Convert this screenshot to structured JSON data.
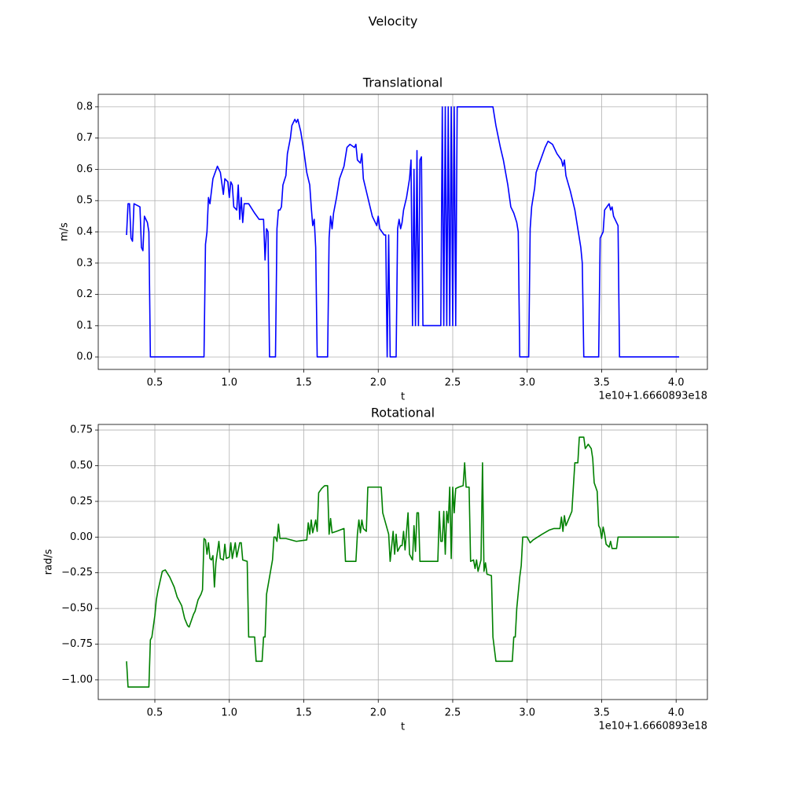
{
  "title": "Velocity",
  "chart_data": [
    {
      "type": "line",
      "title": "Translational",
      "x_label": "t",
      "y_label": "m/s",
      "x_offset_label": "1e10+1.6660893e18",
      "grid": true,
      "xlim": [
        0.12,
        4.21
      ],
      "ylim": [
        -0.04,
        0.84
      ],
      "xticks": [
        0.5,
        {
          "value": 1,
          "label": "1.0"
        },
        1.5,
        {
          "value": 2,
          "label": "2.0"
        },
        2.5,
        {
          "value": 3,
          "label": "3.0"
        },
        3.5,
        {
          "value": 4,
          "label": "4.0"
        }
      ],
      "yticks": [
        {
          "value": 0,
          "label": "0.0"
        },
        0.1,
        0.2,
        0.3,
        0.4,
        0.5,
        0.6,
        0.7,
        0.8
      ],
      "x": [
        0.31,
        0.32,
        0.33,
        0.34,
        0.35,
        0.36,
        0.4,
        0.41,
        0.42,
        0.43,
        0.45,
        0.46,
        0.47,
        0.83,
        0.84,
        0.85,
        0.86,
        0.87,
        0.89,
        0.92,
        0.94,
        0.96,
        0.97,
        0.99,
        1.0,
        1.01,
        1.02,
        1.03,
        1.05,
        1.06,
        1.07,
        1.08,
        1.09,
        1.1,
        1.13,
        1.17,
        1.2,
        1.23,
        1.24,
        1.25,
        1.26,
        1.27,
        1.31,
        1.32,
        1.33,
        1.34,
        1.35,
        1.36,
        1.38,
        1.39,
        1.41,
        1.42,
        1.44,
        1.45,
        1.46,
        1.48,
        1.5,
        1.52,
        1.54,
        1.55,
        1.56,
        1.57,
        1.58,
        1.59,
        1.66,
        1.67,
        1.68,
        1.69,
        1.7,
        1.72,
        1.74,
        1.77,
        1.79,
        1.81,
        1.84,
        1.85,
        1.86,
        1.88,
        1.89,
        1.9,
        1.93,
        1.96,
        1.98,
        1.99,
        2.0,
        2.01,
        2.04,
        2.05,
        2.06,
        2.07,
        2.08,
        2.12,
        2.13,
        2.14,
        2.15,
        2.16,
        2.17,
        2.19,
        2.21,
        2.22,
        2.23,
        2.24,
        2.25,
        2.26,
        2.27,
        2.28,
        2.29,
        2.3,
        2.42,
        2.43,
        2.44,
        2.45,
        2.46,
        2.47,
        2.48,
        2.49,
        2.5,
        2.51,
        2.52,
        2.53,
        2.77,
        2.79,
        2.82,
        2.84,
        2.87,
        2.89,
        2.91,
        2.93,
        2.94,
        2.95,
        3.01,
        3.02,
        3.03,
        3.05,
        3.06,
        3.09,
        3.12,
        3.14,
        3.17,
        3.2,
        3.23,
        3.24,
        3.25,
        3.26,
        3.29,
        3.32,
        3.34,
        3.36,
        3.37,
        3.38,
        3.48,
        3.49,
        3.51,
        3.52,
        3.55,
        3.56,
        3.57,
        3.58,
        3.61,
        3.62,
        4.02
      ],
      "series": [
        {
          "name": "Translational",
          "color": "#0000ff",
          "values": [
            0.39,
            0.49,
            0.49,
            0.38,
            0.37,
            0.49,
            0.48,
            0.35,
            0.34,
            0.45,
            0.43,
            0.4,
            0.0,
            0.0,
            0.36,
            0.4,
            0.51,
            0.49,
            0.57,
            0.61,
            0.59,
            0.52,
            0.57,
            0.56,
            0.51,
            0.56,
            0.55,
            0.48,
            0.47,
            0.55,
            0.44,
            0.51,
            0.43,
            0.49,
            0.49,
            0.46,
            0.44,
            0.44,
            0.31,
            0.41,
            0.4,
            0.0,
            0.0,
            0.41,
            0.47,
            0.47,
            0.48,
            0.55,
            0.58,
            0.65,
            0.7,
            0.74,
            0.76,
            0.75,
            0.76,
            0.72,
            0.66,
            0.59,
            0.55,
            0.48,
            0.42,
            0.44,
            0.35,
            0.0,
            0.0,
            0.38,
            0.45,
            0.41,
            0.46,
            0.51,
            0.57,
            0.61,
            0.67,
            0.68,
            0.67,
            0.68,
            0.63,
            0.62,
            0.65,
            0.57,
            0.51,
            0.45,
            0.43,
            0.42,
            0.45,
            0.41,
            0.39,
            0.39,
            0.0,
            0.39,
            0.0,
            0.0,
            0.41,
            0.44,
            0.41,
            0.43,
            0.47,
            0.51,
            0.57,
            0.63,
            0.1,
            0.6,
            0.1,
            0.66,
            0.1,
            0.63,
            0.64,
            0.1,
            0.1,
            0.8,
            0.1,
            0.8,
            0.1,
            0.8,
            0.1,
            0.8,
            0.1,
            0.8,
            0.1,
            0.8,
            0.8,
            0.74,
            0.67,
            0.63,
            0.55,
            0.48,
            0.46,
            0.43,
            0.4,
            0.0,
            0.0,
            0.41,
            0.48,
            0.54,
            0.59,
            0.63,
            0.67,
            0.69,
            0.68,
            0.65,
            0.63,
            0.61,
            0.63,
            0.58,
            0.53,
            0.47,
            0.41,
            0.35,
            0.3,
            0.0,
            0.0,
            0.38,
            0.4,
            0.47,
            0.49,
            0.47,
            0.48,
            0.45,
            0.42,
            0.0,
            0.0
          ]
        }
      ]
    },
    {
      "type": "line",
      "title": "Rotational",
      "x_label": "t",
      "y_label": "rad/s",
      "x_offset_label": "1e10+1.6660893e18",
      "grid": true,
      "xlim": [
        0.12,
        4.21
      ],
      "ylim": [
        -1.138,
        0.789
      ],
      "xticks": [
        0.5,
        {
          "value": 1,
          "label": "1.0"
        },
        1.5,
        {
          "value": 2,
          "label": "2.0"
        },
        2.5,
        {
          "value": 3,
          "label": "3.0"
        },
        3.5,
        {
          "value": 4,
          "label": "4.0"
        }
      ],
      "yticks": [
        {
          "value": -1,
          "label": "−1.00"
        },
        {
          "value": -0.75,
          "label": "−0.75"
        },
        {
          "value": -0.5,
          "label": "−0.50"
        },
        {
          "value": -0.25,
          "label": "−0.25"
        },
        {
          "value": 0,
          "label": "0.00"
        },
        0.25,
        {
          "value": 0.5,
          "label": "0.50"
        },
        0.75
      ],
      "x": [
        0.31,
        0.32,
        0.46,
        0.47,
        0.48,
        0.5,
        0.51,
        0.52,
        0.55,
        0.57,
        0.6,
        0.63,
        0.65,
        0.68,
        0.7,
        0.72,
        0.73,
        0.76,
        0.77,
        0.79,
        0.81,
        0.82,
        0.83,
        0.84,
        0.85,
        0.86,
        0.87,
        0.88,
        0.89,
        0.9,
        0.91,
        0.93,
        0.94,
        0.96,
        0.97,
        0.98,
        1.0,
        1.01,
        1.02,
        1.04,
        1.05,
        1.07,
        1.08,
        1.09,
        1.12,
        1.13,
        1.17,
        1.18,
        1.22,
        1.23,
        1.24,
        1.25,
        1.28,
        1.29,
        1.3,
        1.31,
        1.32,
        1.33,
        1.34,
        1.38,
        1.45,
        1.52,
        1.53,
        1.54,
        1.55,
        1.56,
        1.58,
        1.59,
        1.6,
        1.62,
        1.64,
        1.66,
        1.67,
        1.68,
        1.69,
        1.72,
        1.77,
        1.78,
        1.85,
        1.86,
        1.87,
        1.88,
        1.89,
        1.9,
        1.92,
        1.93,
        2.02,
        2.03,
        2.07,
        2.08,
        2.1,
        2.11,
        2.12,
        2.13,
        2.15,
        2.16,
        2.17,
        2.18,
        2.2,
        2.21,
        2.23,
        2.24,
        2.25,
        2.26,
        2.27,
        2.28,
        2.4,
        2.41,
        2.42,
        2.43,
        2.44,
        2.45,
        2.46,
        2.47,
        2.48,
        2.49,
        2.5,
        2.51,
        2.52,
        2.54,
        2.57,
        2.58,
        2.59,
        2.61,
        2.62,
        2.64,
        2.65,
        2.66,
        2.67,
        2.69,
        2.7,
        2.71,
        2.72,
        2.73,
        2.76,
        2.77,
        2.79,
        2.9,
        2.91,
        2.92,
        2.93,
        2.95,
        2.96,
        2.97,
        3.0,
        3.02,
        3.04,
        3.1,
        3.15,
        3.18,
        3.22,
        3.23,
        3.24,
        3.25,
        3.26,
        3.3,
        3.32,
        3.34,
        3.35,
        3.38,
        3.39,
        3.41,
        3.43,
        3.44,
        3.45,
        3.47,
        3.48,
        3.49,
        3.5,
        3.51,
        3.52,
        3.53,
        3.55,
        3.56,
        3.57,
        3.6,
        3.61,
        4.02
      ],
      "series": [
        {
          "name": "Rotational",
          "color": "#008000",
          "values": [
            -0.87,
            -1.05,
            -1.05,
            -0.72,
            -0.7,
            -0.55,
            -0.44,
            -0.38,
            -0.24,
            -0.23,
            -0.28,
            -0.35,
            -0.42,
            -0.48,
            -0.57,
            -0.62,
            -0.63,
            -0.54,
            -0.52,
            -0.44,
            -0.4,
            -0.37,
            -0.01,
            -0.02,
            -0.12,
            -0.04,
            -0.15,
            -0.16,
            -0.13,
            -0.35,
            -0.18,
            -0.03,
            -0.15,
            -0.16,
            -0.05,
            -0.15,
            -0.14,
            -0.04,
            -0.15,
            -0.04,
            -0.14,
            -0.04,
            -0.04,
            -0.16,
            -0.17,
            -0.7,
            -0.7,
            -0.87,
            -0.87,
            -0.7,
            -0.7,
            -0.4,
            -0.22,
            -0.16,
            0.0,
            0.0,
            -0.03,
            0.09,
            -0.01,
            -0.01,
            -0.03,
            -0.02,
            0.1,
            0.02,
            0.12,
            0.03,
            0.12,
            0.04,
            0.31,
            0.34,
            0.36,
            0.36,
            0.02,
            0.13,
            0.03,
            0.04,
            0.06,
            -0.17,
            -0.17,
            0.02,
            0.12,
            0.03,
            0.12,
            0.06,
            0.04,
            0.35,
            0.35,
            0.17,
            0.02,
            -0.17,
            0.04,
            -0.12,
            0.02,
            -0.1,
            -0.06,
            -0.06,
            0.04,
            -0.09,
            0.17,
            -0.12,
            -0.16,
            0.08,
            -0.1,
            0.17,
            0.17,
            -0.17,
            -0.17,
            0.18,
            -0.03,
            -0.03,
            0.18,
            -0.12,
            0.18,
            0.1,
            0.35,
            -0.15,
            0.35,
            0.17,
            0.34,
            0.35,
            0.36,
            0.52,
            0.35,
            0.35,
            -0.17,
            -0.16,
            -0.22,
            -0.16,
            -0.24,
            -0.16,
            0.52,
            -0.24,
            -0.18,
            -0.26,
            -0.27,
            -0.7,
            -0.87,
            -0.87,
            -0.7,
            -0.7,
            -0.5,
            -0.28,
            -0.2,
            0.0,
            0.0,
            -0.04,
            -0.02,
            0.02,
            0.05,
            0.06,
            0.06,
            0.14,
            0.04,
            0.15,
            0.08,
            0.18,
            0.52,
            0.52,
            0.7,
            0.7,
            0.62,
            0.65,
            0.62,
            0.55,
            0.38,
            0.32,
            0.08,
            0.06,
            -0.01,
            0.07,
            0.02,
            -0.05,
            -0.07,
            -0.03,
            -0.08,
            -0.08,
            0.0,
            0.0
          ]
        }
      ]
    }
  ]
}
